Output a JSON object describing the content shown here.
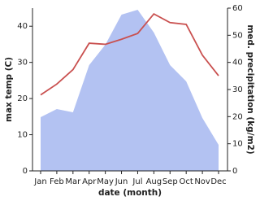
{
  "chart_data": {
    "type": "line",
    "x_label": "date (month)",
    "y_label": "max temp (C)",
    "y2_label": "med. precipitation (kg/m2)",
    "categories": [
      "Jan",
      "Feb",
      "Mar",
      "Apr",
      "May",
      "Jun",
      "Jul",
      "Aug",
      "Sep",
      "Oct",
      "Nov",
      "Dec"
    ],
    "series": [
      {
        "name": "max temp (C)",
        "color": "#c9504f",
        "values": [
          21,
          24,
          28,
          35.3,
          35,
          36.4,
          38,
          43.4,
          41,
          40.5,
          32,
          26.3
        ]
      },
      {
        "name": "med. precipitation (kg/m2)",
        "color": "#b3c2f2",
        "axis": "y2",
        "area": true,
        "values": [
          19.8,
          22.8,
          21.6,
          39,
          46.5,
          57.6,
          59.4,
          51,
          39,
          33,
          19.5,
          9.6
        ]
      }
    ],
    "ylim": [
      0,
      45
    ],
    "yticks": [
      0,
      10,
      20,
      30,
      40
    ],
    "y2lim": [
      0,
      60
    ],
    "y2ticks": [
      0,
      10,
      20,
      30,
      40,
      50,
      60
    ]
  }
}
